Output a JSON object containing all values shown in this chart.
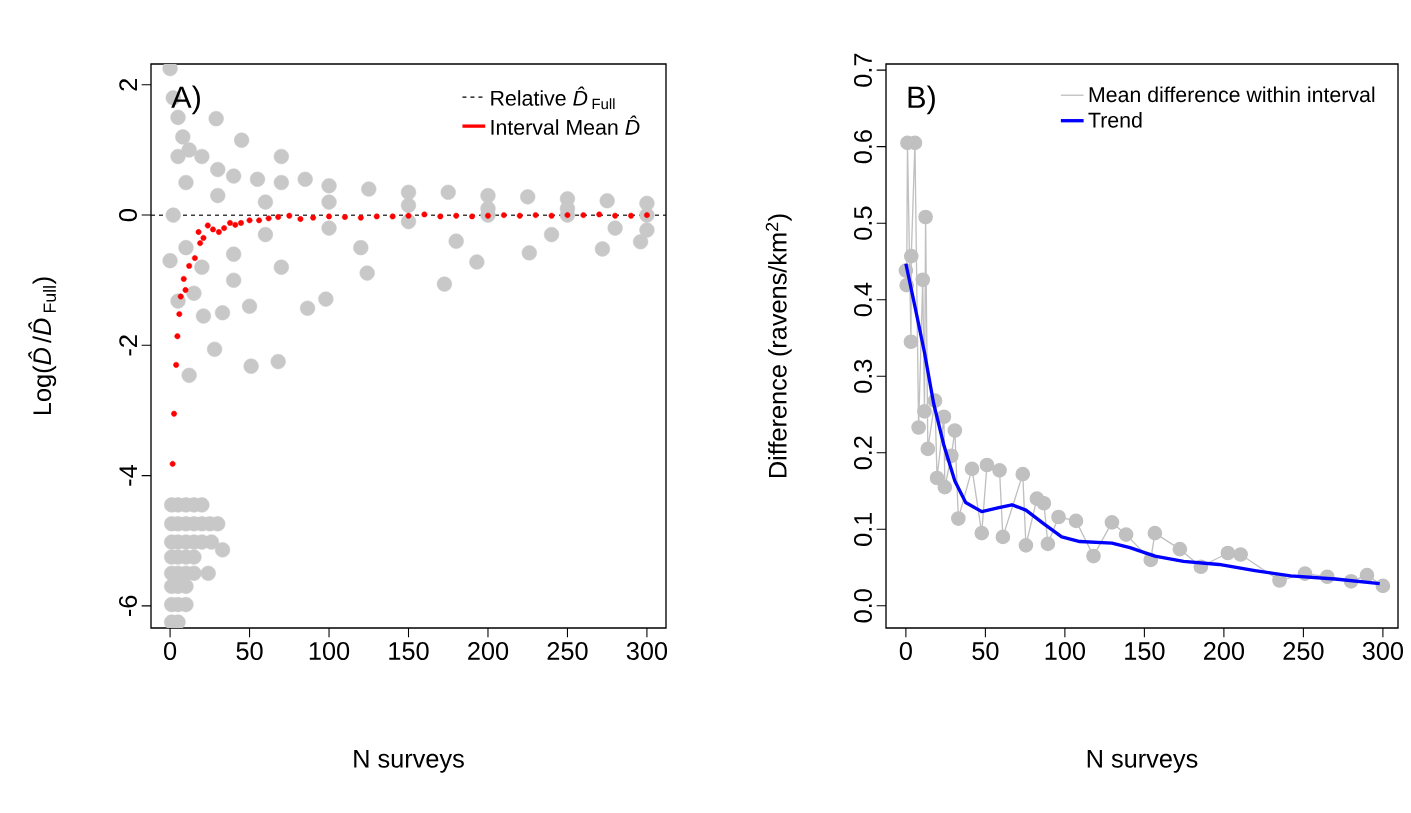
{
  "chart_data": [
    {
      "type": "scatter",
      "annotations": [
        "A)"
      ],
      "xlabel": "N surveys",
      "ylabel": "Log(*D̂*/*D̂*$_{Full}$)",
      "xlim": [
        -12,
        312
      ],
      "ylim": [
        -6.34,
        2.32
      ],
      "xticks": [
        0,
        50,
        100,
        150,
        200,
        250,
        300
      ],
      "yticks": [
        -6,
        -4,
        -2,
        0,
        2
      ],
      "grid": false,
      "legend": "top right",
      "ref_lines": [
        {
          "axis": "y",
          "value": 0,
          "label": "Relative *D̂*$_{Full}$",
          "color": "#000000",
          "line_style": "dashed"
        }
      ],
      "series": [
        {
          "color": "#c8c8c8",
          "marker": "circle",
          "x": [
            0,
            2,
            5,
            8,
            12,
            20,
            30,
            40,
            55,
            70,
            85,
            100,
            125,
            150,
            175,
            200,
            225,
            250,
            275,
            300,
            29,
            45,
            70,
            0,
            5,
            21,
            28,
            12,
            33,
            51,
            68,
            86.5,
            98,
            124,
            172.6,
            193,
            226,
            272,
            296,
            300,
            2,
            10,
            20,
            40,
            60,
            100,
            150,
            200,
            250,
            300,
            10,
            30,
            60,
            100,
            150,
            200,
            250,
            15,
            40,
            70,
            120,
            180,
            240,
            280,
            5,
            50,
            1,
            5,
            10,
            15,
            20,
            1,
            5,
            10,
            15,
            20,
            25,
            30,
            1,
            5,
            10,
            15,
            20,
            26,
            1,
            5,
            10,
            15,
            1,
            5,
            10,
            15,
            24,
            1,
            5,
            10,
            1,
            5,
            10,
            1,
            5,
            33
          ],
          "values": [
            2.25,
            1.8,
            1.5,
            1.2,
            1.0,
            0.9,
            0.7,
            0.6,
            0.55,
            0.5,
            0.55,
            0.45,
            0.4,
            0.35,
            0.35,
            0.3,
            0.28,
            0.25,
            0.22,
            0.18,
            1.48,
            1.15,
            0.9,
            -0.7,
            -1.32,
            -1.55,
            -2.06,
            -2.46,
            -1.5,
            -2.32,
            -2.25,
            -1.43,
            -1.29,
            -0.89,
            -1.06,
            -0.72,
            -0.58,
            -0.52,
            -0.41,
            -0.23,
            0,
            -0.5,
            -0.8,
            -0.6,
            -0.3,
            -0.2,
            -0.1,
            0,
            0,
            0,
            0.5,
            0.3,
            0.2,
            0.2,
            0.15,
            0.1,
            0.1,
            -1.2,
            -1.0,
            -0.8,
            -0.5,
            -0.4,
            -0.3,
            -0.2,
            0.9,
            -1.4,
            -4.45,
            -4.45,
            -4.45,
            -4.45,
            -4.45,
            -4.74,
            -4.74,
            -4.74,
            -4.74,
            -4.74,
            -4.74,
            -4.74,
            -5.02,
            -5.02,
            -5.02,
            -5.02,
            -5.02,
            -5.02,
            -5.25,
            -5.25,
            -5.25,
            -5.25,
            -5.5,
            -5.5,
            -5.5,
            -5.5,
            -5.5,
            -5.7,
            -5.7,
            -5.7,
            -5.98,
            -5.98,
            -5.98,
            -6.25,
            -6.25,
            -5.14
          ]
        },
        {
          "name": "Interval Mean *D̂*",
          "color": "#ff0000",
          "marker": "circle",
          "x": [
            1.6,
            2.5,
            3.8,
            4.6,
            5.8,
            6.7,
            8.6,
            9.7,
            12,
            15.6,
            17.9,
            18.9,
            21,
            23.7,
            27,
            30.7,
            34,
            37.7,
            41,
            44.6,
            50,
            56,
            62,
            68,
            75,
            82,
            90,
            100,
            110,
            120,
            130,
            140,
            150,
            160,
            170,
            180,
            190,
            200,
            210,
            220,
            230,
            240,
            250,
            260,
            270,
            280,
            290,
            300
          ],
          "values": [
            -3.82,
            -3.05,
            -2.3,
            -1.86,
            -1.52,
            -1.25,
            -0.98,
            -1.15,
            -0.78,
            -0.66,
            -0.26,
            -0.43,
            -0.35,
            -0.16,
            -0.22,
            -0.26,
            -0.2,
            -0.12,
            -0.15,
            -0.12,
            -0.08,
            -0.08,
            -0.05,
            -0.03,
            -0.01,
            -0.06,
            -0.04,
            -0.02,
            -0.03,
            -0.04,
            -0.02,
            -0.02,
            -0.01,
            0.01,
            -0.02,
            -0.01,
            -0.02,
            -0.01,
            0,
            -0.01,
            0,
            -0.01,
            0,
            0,
            0.01,
            -0.01,
            -0.01,
            0
          ]
        }
      ]
    },
    {
      "type": "line",
      "annotations": [
        "B)"
      ],
      "xlabel": "N surveys",
      "ylabel": "Difference (ravens/km$^{2}$)",
      "xlim": [
        -12.5,
        309.5
      ],
      "ylim": [
        -0.029,
        0.708
      ],
      "xticks": [
        0,
        50,
        100,
        150,
        200,
        250,
        300
      ],
      "yticks": [
        {
          "value": 0,
          "label": "0.0"
        },
        {
          "value": 0.1,
          "label": "0.1"
        },
        {
          "value": 0.2,
          "label": "0.2"
        },
        {
          "value": 0.3,
          "label": "0.3"
        },
        {
          "value": 0.4,
          "label": "0.4"
        },
        {
          "value": 0.5,
          "label": "0.5"
        },
        {
          "value": 0.6,
          "label": "0.6"
        },
        {
          "value": 0.7,
          "label": "0.7"
        }
      ],
      "grid": false,
      "legend": "top right",
      "series": [
        {
          "name": "Mean difference within interval",
          "color": "#c0c0c0",
          "marker": "circle",
          "x": [
            0,
            0.5,
            1,
            3.2,
            3.4,
            5.7,
            8,
            10.6,
            11.7,
            12.4,
            13.8,
            18.3,
            19.6,
            23.9,
            24.5,
            28.6,
            30.8,
            33,
            41.6,
            47.7,
            51,
            58.9,
            61,
            73.5,
            75.5,
            82.4,
            86.8,
            89.3,
            96,
            107,
            118,
            129.6,
            138.5,
            154,
            156.6,
            172.3,
            185.5,
            202.5,
            210.5,
            235,
            251,
            265,
            280,
            290,
            300
          ],
          "values": [
            0.438,
            0.419,
            0.605,
            0.345,
            0.457,
            0.605,
            0.233,
            0.426,
            0.254,
            0.508,
            0.205,
            0.268,
            0.167,
            0.247,
            0.155,
            0.196,
            0.229,
            0.114,
            0.179,
            0.095,
            0.184,
            0.177,
            0.09,
            0.172,
            0.079,
            0.14,
            0.134,
            0.081,
            0.116,
            0.111,
            0.065,
            0.109,
            0.093,
            0.06,
            0.095,
            0.074,
            0.051,
            0.069,
            0.067,
            0.033,
            0.042,
            0.038,
            0.032,
            0.04,
            0.026
          ]
        },
        {
          "name": "Trend",
          "color": "#0000ff",
          "marker": "none",
          "x": [
            0,
            6.1,
            11.7,
            17.4,
            24,
            30.8,
            37.6,
            47.7,
            57.8,
            66.7,
            75.5,
            86.8,
            98,
            109.4,
            129.6,
            140.9,
            156.6,
            174.6,
            196.9,
            219.5,
            242,
            270,
            298
          ],
          "values": [
            0.447,
            0.387,
            0.331,
            0.265,
            0.209,
            0.163,
            0.135,
            0.123,
            0.128,
            0.132,
            0.125,
            0.107,
            0.09,
            0.084,
            0.082,
            0.076,
            0.065,
            0.058,
            0.054,
            0.046,
            0.039,
            0.035,
            0.029
          ]
        }
      ]
    }
  ]
}
